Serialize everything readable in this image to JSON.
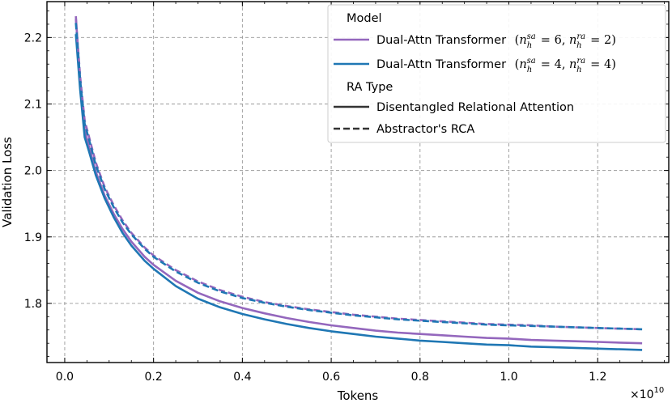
{
  "chart_data": {
    "type": "line",
    "title": "",
    "xlabel": "Tokens",
    "ylabel": "Validation Loss",
    "x_multiplier": "×10",
    "x_multiplier_exp": "10",
    "xlim": [
      -0.04,
      1.36
    ],
    "ylim": [
      1.711,
      2.254
    ],
    "xticks": [
      0.0,
      0.2,
      0.4,
      0.6,
      0.8,
      1.0,
      1.2
    ],
    "xtick_labels": [
      "0.0",
      "0.2",
      "0.4",
      "0.6",
      "0.8",
      "1.0",
      "1.2"
    ],
    "yticks": [
      1.8,
      1.9,
      2.0,
      2.1,
      2.2
    ],
    "ytick_labels": [
      "1.8",
      "1.9",
      "2.0",
      "2.1",
      "2.2"
    ],
    "grid": true,
    "legend_position": "top-right",
    "legend": {
      "model_title": "Model",
      "models": [
        {
          "label": "Dual-Attn Transformer",
          "math": {
            "sa": "6",
            "ra": "2"
          },
          "color": "#9467bd"
        },
        {
          "label": "Dual-Attn Transformer",
          "math": {
            "sa": "4",
            "ra": "4"
          },
          "color": "#1f77b4"
        }
      ],
      "ra_title": "RA Type",
      "ra_types": [
        {
          "label": "Disentangled Relational Attention",
          "style": "solid"
        },
        {
          "label": "Abstractor's RCA",
          "style": "dashed"
        }
      ]
    },
    "series": [
      {
        "color": "#9467bd",
        "style": "solid",
        "x": [
          0.025,
          0.035,
          0.045,
          0.055,
          0.07,
          0.09,
          0.11,
          0.13,
          0.15,
          0.18,
          0.2,
          0.25,
          0.3,
          0.35,
          0.4,
          0.45,
          0.5,
          0.55,
          0.6,
          0.65,
          0.7,
          0.75,
          0.8,
          0.85,
          0.9,
          0.95,
          1.0,
          1.05,
          1.1,
          1.15,
          1.2,
          1.25,
          1.3
        ],
        "y": [
          2.232,
          2.13,
          2.06,
          2.035,
          1.998,
          1.962,
          1.935,
          1.912,
          1.893,
          1.87,
          1.858,
          1.834,
          1.816,
          1.803,
          1.793,
          1.785,
          1.778,
          1.772,
          1.767,
          1.763,
          1.759,
          1.756,
          1.754,
          1.752,
          1.75,
          1.748,
          1.747,
          1.745,
          1.744,
          1.743,
          1.742,
          1.741,
          1.74
        ]
      },
      {
        "color": "#1f77b4",
        "style": "solid",
        "x": [
          0.025,
          0.035,
          0.045,
          0.055,
          0.07,
          0.09,
          0.11,
          0.13,
          0.15,
          0.18,
          0.2,
          0.25,
          0.3,
          0.35,
          0.4,
          0.45,
          0.5,
          0.55,
          0.6,
          0.65,
          0.7,
          0.75,
          0.8,
          0.85,
          0.9,
          0.95,
          1.0,
          1.05,
          1.1,
          1.15,
          1.2,
          1.25,
          1.3
        ],
        "y": [
          2.205,
          2.12,
          2.05,
          2.028,
          1.993,
          1.958,
          1.93,
          1.906,
          1.887,
          1.864,
          1.852,
          1.826,
          1.807,
          1.794,
          1.784,
          1.776,
          1.769,
          1.763,
          1.758,
          1.754,
          1.75,
          1.747,
          1.744,
          1.742,
          1.74,
          1.738,
          1.737,
          1.735,
          1.734,
          1.733,
          1.732,
          1.731,
          1.73
        ]
      },
      {
        "color": "#9467bd",
        "style": "dashed",
        "x": [
          0.025,
          0.035,
          0.045,
          0.055,
          0.07,
          0.09,
          0.11,
          0.13,
          0.15,
          0.18,
          0.2,
          0.25,
          0.3,
          0.35,
          0.4,
          0.45,
          0.5,
          0.55,
          0.6,
          0.65,
          0.7,
          0.75,
          0.8,
          0.85,
          0.9,
          0.95,
          1.0,
          1.05,
          1.1,
          1.15,
          1.2,
          1.25,
          1.3
        ],
        "y": [
          2.228,
          2.14,
          2.075,
          2.05,
          2.012,
          1.975,
          1.948,
          1.925,
          1.906,
          1.884,
          1.872,
          1.85,
          1.833,
          1.82,
          1.81,
          1.802,
          1.796,
          1.791,
          1.787,
          1.783,
          1.78,
          1.777,
          1.775,
          1.773,
          1.771,
          1.769,
          1.768,
          1.767,
          1.765,
          1.764,
          1.763,
          1.762,
          1.761
        ]
      },
      {
        "color": "#1f77b4",
        "style": "dashed",
        "x": [
          0.025,
          0.035,
          0.045,
          0.055,
          0.07,
          0.09,
          0.11,
          0.13,
          0.15,
          0.18,
          0.2,
          0.25,
          0.3,
          0.35,
          0.4,
          0.45,
          0.5,
          0.55,
          0.6,
          0.65,
          0.7,
          0.75,
          0.8,
          0.85,
          0.9,
          0.95,
          1.0,
          1.05,
          1.1,
          1.15,
          1.2,
          1.25,
          1.3
        ],
        "y": [
          2.222,
          2.135,
          2.07,
          2.046,
          2.008,
          1.972,
          1.945,
          1.922,
          1.904,
          1.882,
          1.87,
          1.848,
          1.831,
          1.818,
          1.808,
          1.801,
          1.795,
          1.79,
          1.786,
          1.782,
          1.779,
          1.776,
          1.774,
          1.772,
          1.77,
          1.768,
          1.767,
          1.766,
          1.765,
          1.764,
          1.763,
          1.762,
          1.761
        ]
      }
    ]
  }
}
